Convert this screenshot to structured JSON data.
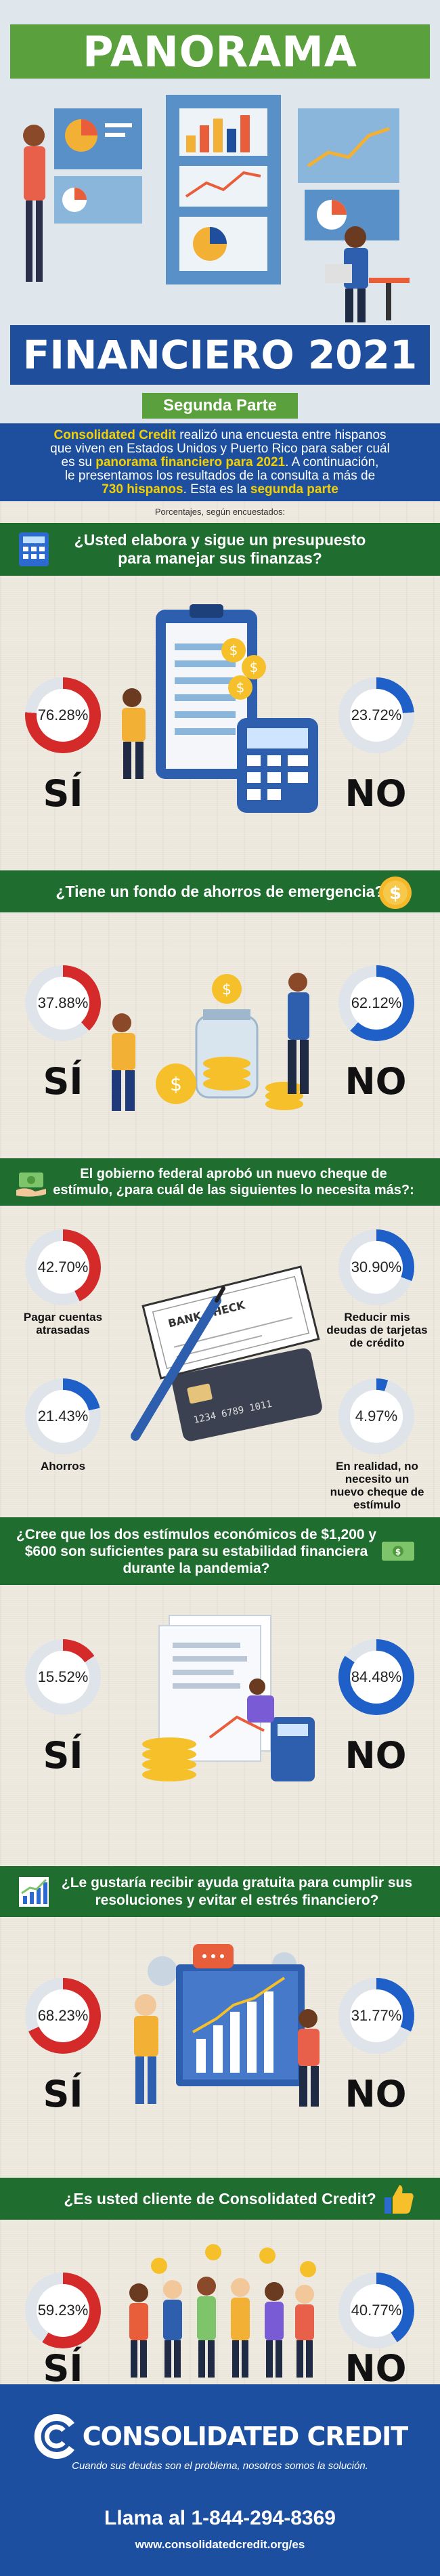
{
  "header": {
    "title_top": "PANORAMA",
    "title_bottom": "FINANCIERO 2021",
    "subtitle": "Segunda Parte"
  },
  "intro": {
    "line1_brand": "Consolidated Credit",
    "line1_rest": " realizó una encuesta entre hispanos",
    "line2": "que viven en Estados Unidos y Puerto Rico para saber cuál",
    "line3_pre": "es su ",
    "line3_hl": "panorama financiero para 2021",
    "line3_post": ".  A continuación,",
    "line4": "le presentamos  los resultados  de la consulta a más de",
    "line5_hl1": "730 hispanos",
    "line5_mid": ". Esta es la ",
    "line5_hl2": "segunda parte"
  },
  "note": "Porcentajes, según encuestados:",
  "q1": {
    "line1": "¿Usted elabora y sigue un presupuesto",
    "line2": "para manejar sus finanzas?",
    "yes_pct": "76.28%",
    "no_pct": "23.72%",
    "yes": "SÍ",
    "no": "NO",
    "icon": "calculator-icon"
  },
  "q2": {
    "line1": "¿Tiene un fondo de ahorros de emergencia?",
    "yes_pct": "37.88%",
    "no_pct": "62.12%",
    "yes": "SÍ",
    "no": "NO",
    "icon": "dollar-coin-icon"
  },
  "q3": {
    "line1": "El gobierno federal aprobó un nuevo cheque de",
    "line2": "estímulo, ¿para cuál de las siguientes lo necesita más?:",
    "icon": "money-hand-icon",
    "options": [
      {
        "pct": "42.70%",
        "label1": "Pagar cuentas",
        "label2": "atrasadas",
        "label3": "",
        "label4": ""
      },
      {
        "pct": "30.90%",
        "label1": "Reducir mis",
        "label2": "deudas de tarjetas",
        "label3": "de crédito",
        "label4": ""
      },
      {
        "pct": "21.43%",
        "label1": "Ahorros",
        "label2": "",
        "label3": "",
        "label4": ""
      },
      {
        "pct": "4.97%",
        "label1": "En realidad, no",
        "label2": "necesito un",
        "label3": "nuevo cheque de",
        "label4": "estímulo"
      }
    ],
    "check_text": "BANK CHECK",
    "card_number": "1234 6789 1011"
  },
  "q4": {
    "line1": "¿Cree que los dos estímulos económicos de $1,200 y",
    "line2": "$600 son suficientes para su estabilidad financiera",
    "line3": "durante la pandemia?",
    "yes_pct": "15.52%",
    "no_pct": "84.48%",
    "yes": "SÍ",
    "no": "NO",
    "icon": "money-bill-icon"
  },
  "q5": {
    "line1": "¿Le gustaría recibir ayuda gratuita para cumplir sus",
    "line2": "resoluciones y evitar el estrés financiero?",
    "yes_pct": "68.23%",
    "no_pct": "31.77%",
    "yes": "SÍ",
    "no": "NO",
    "icon": "growth-chart-icon"
  },
  "q6": {
    "line1": "¿Es usted cliente de Consolidated Credit?",
    "yes_pct": "59.23%",
    "no_pct": "40.77%",
    "yes": "SÍ",
    "no": "NO",
    "icon": "thumbs-up-icon"
  },
  "footer": {
    "brand": "CONSOLIDATED CREDIT",
    "tagline": "Cuando sus deudas son el problema, nosotros somos la solución.",
    "phone": "Llama al 1-844-294-8369",
    "url": "www.consolidatedcredit.org/es"
  },
  "colors": {
    "yes_ring": "#d42a2a",
    "no_ring": "#1e5fc8",
    "ring_bg": "#dfe3ea",
    "green_bar": "#1f6d2f",
    "header_green": "#5aa03c",
    "header_blue": "#1f4e9c"
  }
}
